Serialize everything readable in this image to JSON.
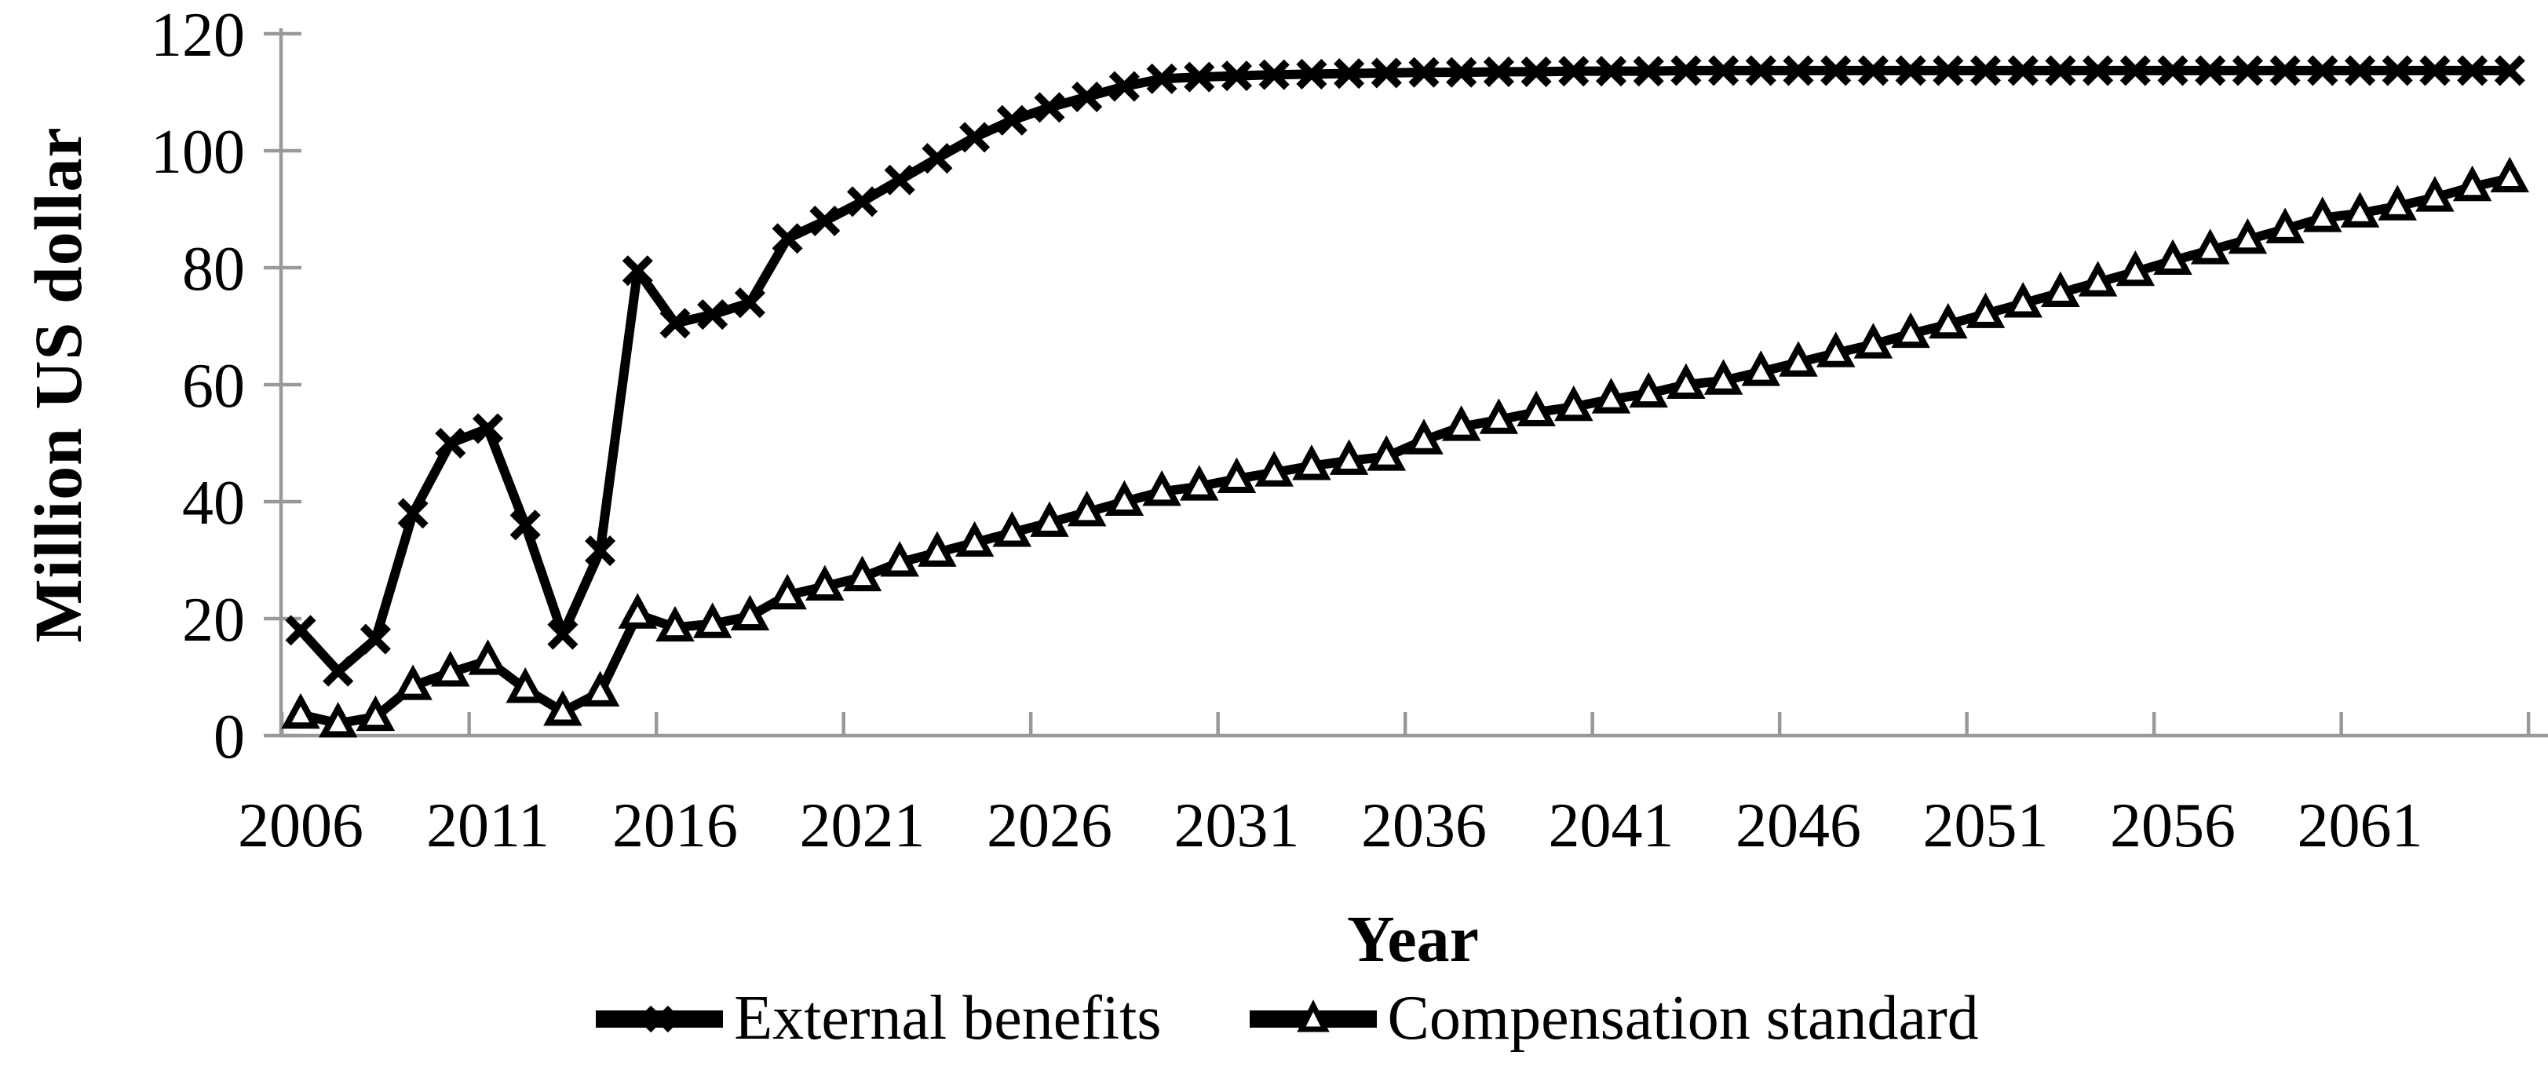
{
  "chart_data": {
    "type": "line",
    "title": "",
    "xlabel": "Year",
    "ylabel": "Million US dollar",
    "ylim": [
      0,
      120
    ],
    "yticks": [
      0,
      20,
      40,
      60,
      80,
      100,
      120
    ],
    "xtick_labels": [
      "2006",
      "2011",
      "2016",
      "2021",
      "2026",
      "2031",
      "2036",
      "2041",
      "2046",
      "2051",
      "2056",
      "2061"
    ],
    "grid": false,
    "legend_position": "bottom",
    "x": [
      2006,
      2007,
      2008,
      2009,
      2010,
      2011,
      2012,
      2013,
      2014,
      2015,
      2016,
      2017,
      2018,
      2019,
      2020,
      2021,
      2022,
      2023,
      2024,
      2025,
      2026,
      2027,
      2028,
      2029,
      2030,
      2031,
      2032,
      2033,
      2034,
      2035,
      2036,
      2037,
      2038,
      2039,
      2040,
      2041,
      2042,
      2043,
      2044,
      2045,
      2046,
      2047,
      2048,
      2049,
      2050,
      2051,
      2052,
      2053,
      2054,
      2055,
      2056,
      2057,
      2058,
      2059,
      2060,
      2061,
      2062,
      2063,
      2064,
      2065
    ],
    "series": [
      {
        "name": "External benefits",
        "marker": "x",
        "values": [
          18,
          11,
          16.5,
          38,
          50,
          52.5,
          36,
          17.3,
          31.6,
          79.5,
          70.5,
          72,
          74,
          85,
          88,
          91.3,
          95,
          98.7,
          102.3,
          105.2,
          107.4,
          109.2,
          111,
          112.3,
          112.6,
          112.8,
          113,
          113.1,
          113.2,
          113.3,
          113.4,
          113.4,
          113.5,
          113.5,
          113.6,
          113.6,
          113.6,
          113.7,
          113.7,
          113.7,
          113.7,
          113.7,
          113.7,
          113.7,
          113.7,
          113.7,
          113.7,
          113.7,
          113.7,
          113.7,
          113.7,
          113.7,
          113.7,
          113.7,
          113.7,
          113.7,
          113.7,
          113.7,
          113.7,
          113.7
        ]
      },
      {
        "name": "Compensation standard",
        "marker": "triangle",
        "values": [
          3.6,
          2.1,
          3.2,
          8.5,
          10.8,
          12.8,
          8,
          4.1,
          7.4,
          20.7,
          18.5,
          19.1,
          20.4,
          24,
          25.5,
          27.1,
          29.6,
          31.3,
          33,
          34.7,
          36.4,
          38.2,
          40,
          41.7,
          42.6,
          43.9,
          45,
          46.1,
          47,
          47.7,
          50.5,
          52.8,
          54,
          55.3,
          56.2,
          57.5,
          58.5,
          60,
          60.7,
          62.2,
          63.8,
          65.4,
          66.9,
          68.7,
          70.3,
          72.1,
          73.9,
          75.7,
          77.5,
          79.3,
          81.2,
          83,
          84.8,
          86.6,
          88.5,
          89.3,
          90.5,
          92,
          93.8,
          95.3
        ]
      }
    ]
  },
  "colors": {
    "series_line": "#000000",
    "axis": "#999999",
    "text": "#000000",
    "marker_fill": "#ffffff"
  }
}
